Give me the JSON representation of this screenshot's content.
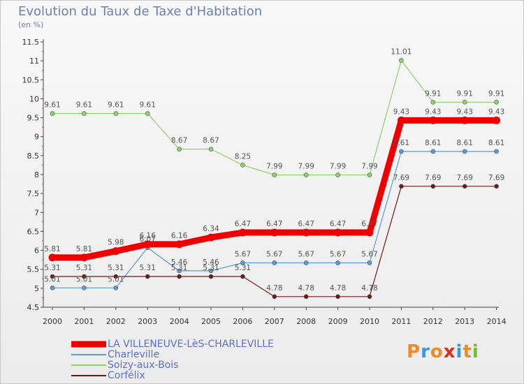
{
  "title": "Evolution du Taux de Taxe d'Habitation",
  "unit_label": "(en %)",
  "brand": {
    "letters": [
      "P",
      "r",
      "o",
      "x",
      "i",
      "t",
      "i"
    ],
    "colors": [
      "#f08a24",
      "#3a9ad9",
      "#f08a24",
      "#d6311c",
      "#3a9ad9",
      "#f08a24",
      "#7ab843"
    ]
  },
  "chart_data": {
    "type": "line",
    "x": [
      "2000",
      "2001",
      "2002",
      "2003",
      "2004",
      "2005",
      "2006",
      "2007",
      "2008",
      "2009",
      "2010",
      "2011",
      "2012",
      "2013",
      "2014"
    ],
    "ylim": [
      4.5,
      11.5
    ],
    "yticks": [
      "4.5",
      "5",
      "5.5",
      "6",
      "6.5",
      "7",
      "7.5",
      "8",
      "8.5",
      "9",
      "9.5",
      "10",
      "10.5",
      "11",
      "11.5"
    ],
    "grid": false,
    "legend_position": "bottom-left",
    "series": [
      {
        "name": "LA VILLENEUVE-LèS-CHARLEVILLE",
        "color": "#ee0000",
        "width": 9,
        "values": [
          5.81,
          5.81,
          5.98,
          6.16,
          6.16,
          6.34,
          6.47,
          6.47,
          6.47,
          6.47,
          6.47,
          9.43,
          9.43,
          9.43,
          9.43
        ],
        "labels": [
          "5.81",
          "5.81",
          "5.98",
          "6.16",
          "6.16",
          "6.34",
          "6.47",
          "6.47",
          "6.47",
          "6.47",
          "6.47",
          "9.43",
          "9.43",
          "9.43",
          "9.43"
        ]
      },
      {
        "name": "Charleville",
        "color": "#5b9bd5",
        "width": 1.2,
        "values": [
          5.01,
          5.01,
          5.01,
          6.07,
          5.46,
          5.46,
          5.67,
          5.67,
          5.67,
          5.67,
          5.67,
          8.61,
          8.61,
          8.61,
          8.61
        ],
        "labels": [
          "5.01",
          "5.01",
          "5.01",
          "6.07",
          "5.46",
          "5.46",
          "5.67",
          "5.67",
          "5.67",
          "5.67",
          "5.67",
          "8.61",
          "8.61",
          "8.61",
          "8.61"
        ]
      },
      {
        "name": "Soizy-aux-Bois",
        "color": "#8fd16a",
        "width": 1.2,
        "values": [
          9.61,
          9.61,
          9.61,
          9.61,
          8.67,
          8.67,
          8.25,
          7.99,
          7.99,
          7.99,
          7.99,
          11.01,
          9.91,
          9.91,
          9.91
        ],
        "labels": [
          "9.61",
          "9.61",
          "9.61",
          "9.61",
          "8.67",
          "8.67",
          "8.25",
          "7.99",
          "7.99",
          "7.99",
          "7.99",
          "11.01",
          "9.91",
          "9.91",
          "9.91"
        ]
      },
      {
        "name": "Corfélix",
        "color": "#6b1a1a",
        "width": 1.2,
        "values": [
          5.31,
          5.31,
          5.31,
          5.31,
          5.31,
          5.31,
          5.31,
          4.78,
          4.78,
          4.78,
          4.78,
          7.69,
          7.69,
          7.69,
          7.69
        ],
        "labels": [
          "5.31",
          "5.31",
          "5.31",
          "5.31",
          "5.31",
          "5.31",
          "5.31",
          "4.78",
          "4.78",
          "4.78",
          "4.78",
          "7.69",
          "7.69",
          "7.69",
          "7.69"
        ]
      }
    ]
  }
}
